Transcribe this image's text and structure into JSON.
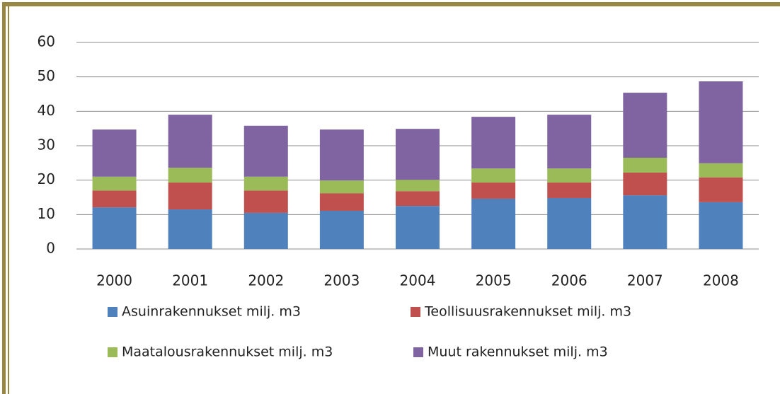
{
  "chart_data": {
    "type": "stacked_bar",
    "categories": [
      "2000",
      "2001",
      "2002",
      "2003",
      "2004",
      "2005",
      "2006",
      "2007",
      "2008"
    ],
    "series": [
      {
        "name": "Asuinrakennukset milj. m3",
        "color": "#4f81bd",
        "values": [
          12.1,
          11.5,
          10.5,
          11.1,
          12.5,
          14.6,
          14.8,
          15.6,
          13.6
        ]
      },
      {
        "name": "Teollisuusrakennukset milj. m3",
        "color": "#c0504d",
        "values": [
          4.9,
          7.8,
          6.5,
          5.1,
          4.3,
          4.7,
          4.5,
          6.6,
          7.2
        ]
      },
      {
        "name": "Maatalousrakennukset milj. m3",
        "color": "#9bbb59",
        "values": [
          4.0,
          4.3,
          4.0,
          3.7,
          3.3,
          4.1,
          4.1,
          4.3,
          4.1
        ]
      },
      {
        "name": "Muut rakennukset milj. m3",
        "color": "#8064a2",
        "values": [
          13.7,
          15.4,
          14.8,
          14.8,
          14.8,
          15.0,
          15.6,
          18.9,
          23.8
        ]
      }
    ],
    "ylim": [
      0,
      60
    ],
    "yticks": [
      0,
      10,
      20,
      30,
      40,
      50,
      60
    ],
    "grid": true
  }
}
